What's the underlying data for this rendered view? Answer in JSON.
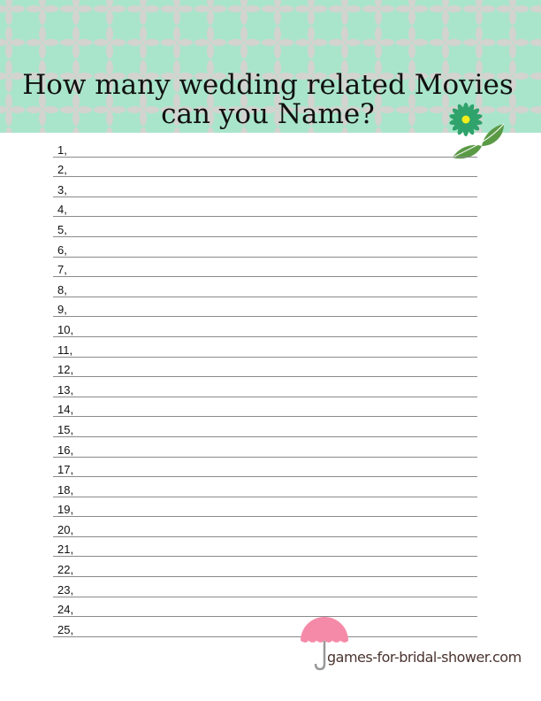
{
  "header": {
    "title_line1": "How many wedding related Movies",
    "title_line2": "can you Name?",
    "pattern_colors": {
      "background": "#a9e5cb",
      "petal": "#d3d3cf"
    }
  },
  "answers": {
    "numbers": [
      "1,",
      "2,",
      "3,",
      "4,",
      "5,",
      "6,",
      "7,",
      "8,",
      "9,",
      "10,",
      "11,",
      "12,",
      "13,",
      "14,",
      "15,",
      "16,",
      "17,",
      "18,",
      "19,",
      "20,",
      "21,",
      "22,",
      "23,",
      "24,",
      "25,"
    ]
  },
  "decorations": {
    "flower_icon": "green-daisy-with-leaves",
    "umbrella_icon": "pink-umbrella",
    "flower_color": "#2fa36b",
    "umbrella_color": "#f58aa8"
  },
  "footer": {
    "site": "games-for-bridal-shower.com"
  }
}
